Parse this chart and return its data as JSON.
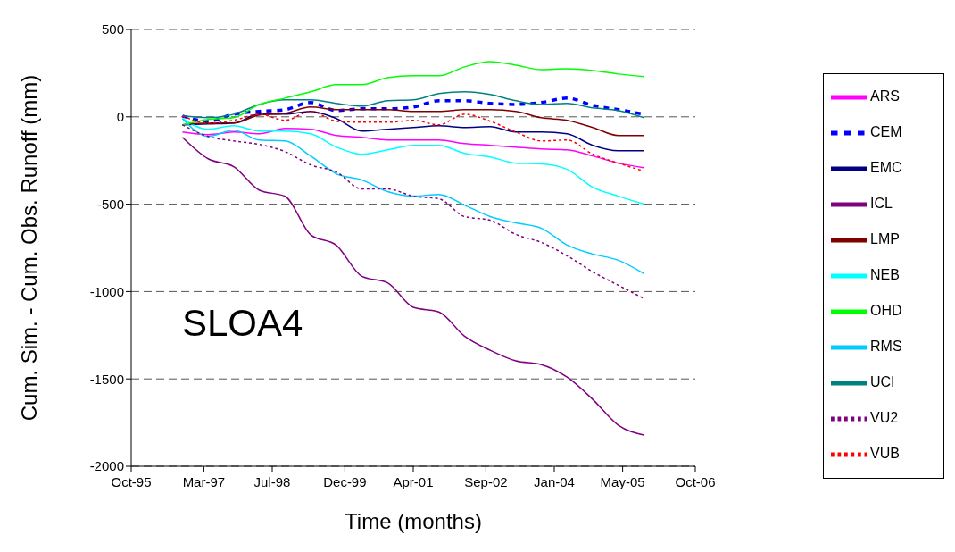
{
  "chart_data": {
    "type": "line",
    "xlabel": "Time (months)",
    "ylabel": "Cum. Sim. - Cum. Obs. Runoff (mm)",
    "annotations": [
      "SLOA4"
    ],
    "x": [
      "1996-10",
      "1997-04",
      "1997-10",
      "1998-04",
      "1998-10",
      "1999-04",
      "1999-10",
      "2000-04",
      "2000-10",
      "2001-04",
      "2001-10",
      "2002-04",
      "2002-10",
      "2003-04",
      "2003-10",
      "2004-04",
      "2004-10",
      "2005-04",
      "2005-10"
    ],
    "xlim": [
      "1995-10",
      "2006-10"
    ],
    "xticks": [
      {
        "value": "1995-10",
        "label": "Oct-95"
      },
      {
        "value": "1997-03",
        "label": "Mar-97"
      },
      {
        "value": "1998-07",
        "label": "Jul-98"
      },
      {
        "value": "1999-12",
        "label": "Dec-99"
      },
      {
        "value": "2001-04",
        "label": "Apr-01"
      },
      {
        "value": "2002-09",
        "label": "Sep-02"
      },
      {
        "value": "2004-01",
        "label": "Jan-04"
      },
      {
        "value": "2005-05",
        "label": "May-05"
      },
      {
        "value": "2006-10",
        "label": "Oct-06"
      }
    ],
    "ylim": [
      -2000,
      500
    ],
    "yticks": [
      500,
      0,
      -500,
      -1000,
      -1500,
      -2000
    ],
    "grid": "y",
    "legend": "right",
    "marker": "none",
    "series": [
      {
        "name": "EMC",
        "color": "#000080",
        "line_style": "solid",
        "values": [
          -46,
          -41,
          -36,
          15,
          15,
          31,
          -10,
          -82,
          -71,
          -61,
          -51,
          -61,
          -56,
          -87,
          -87,
          -97,
          -163,
          -194,
          -194
        ]
      },
      {
        "name": "ARS",
        "color": "#ff00ff",
        "line_style": "solid",
        "values": [
          -87,
          -102,
          -87,
          -97,
          -66,
          -71,
          -107,
          -117,
          -133,
          -133,
          -133,
          -153,
          -163,
          -173,
          -184,
          -189,
          -224,
          -265,
          -291
        ]
      },
      {
        "name": "CEM",
        "color": "#0000ff",
        "line_style": "dashed",
        "values": [
          5,
          -25,
          15,
          31,
          41,
          82,
          36,
          46,
          46,
          56,
          92,
          92,
          77,
          71,
          82,
          107,
          66,
          41,
          15
        ]
      },
      {
        "name": "NEB",
        "color": "#00ffff",
        "line_style": "solid",
        "values": [
          -10,
          -71,
          -51,
          -82,
          -82,
          -97,
          -173,
          -214,
          -189,
          -163,
          -163,
          -209,
          -230,
          -265,
          -270,
          -301,
          -403,
          -454,
          -500
        ]
      },
      {
        "name": "ICL",
        "color": "#800080",
        "line_style": "solid",
        "values": [
          -117,
          -240,
          -285,
          -420,
          -455,
          -675,
          -735,
          -913,
          -950,
          -1090,
          -1117,
          -1255,
          -1336,
          -1397,
          -1418,
          -1490,
          -1617,
          -1765,
          -1821
        ]
      },
      {
        "name": "LMP",
        "color": "#800000",
        "line_style": "solid",
        "values": [
          -46,
          -36,
          -36,
          10,
          20,
          56,
          41,
          41,
          41,
          31,
          31,
          41,
          41,
          31,
          -5,
          -20,
          -61,
          -107,
          -107
        ]
      },
      {
        "name": "UCI",
        "color": "#008080",
        "line_style": "solid",
        "values": [
          5,
          -5,
          15,
          71,
          97,
          97,
          77,
          61,
          92,
          97,
          133,
          143,
          128,
          92,
          71,
          77,
          51,
          36,
          -5
        ]
      },
      {
        "name": "OHD",
        "color": "#00ff00",
        "line_style": "solid",
        "values": [
          -46,
          -15,
          -5,
          71,
          107,
          143,
          184,
          184,
          224,
          235,
          235,
          286,
          316,
          296,
          270,
          275,
          265,
          245,
          230
        ]
      },
      {
        "name": "RMS",
        "color": "#00ccff",
        "line_style": "solid",
        "values": [
          -10,
          -112,
          -77,
          -133,
          -138,
          -224,
          -326,
          -362,
          -428,
          -454,
          -444,
          -505,
          -571,
          -607,
          -638,
          -734,
          -785,
          -821,
          -898
        ]
      },
      {
        "name": "VUB",
        "color": "#ff0000",
        "line_style": "dotted",
        "values": [
          5,
          -36,
          -20,
          15,
          -20,
          31,
          -25,
          -31,
          -31,
          -20,
          -46,
          15,
          -25,
          -87,
          -138,
          -133,
          -214,
          -265,
          -311
        ]
      },
      {
        "name": "VU2",
        "color": "#800080",
        "line_style": "dotted",
        "values": [
          -46,
          -112,
          -138,
          -158,
          -199,
          -275,
          -316,
          -413,
          -413,
          -454,
          -469,
          -571,
          -592,
          -673,
          -719,
          -795,
          -887,
          -964,
          -1040
        ]
      }
    ]
  }
}
